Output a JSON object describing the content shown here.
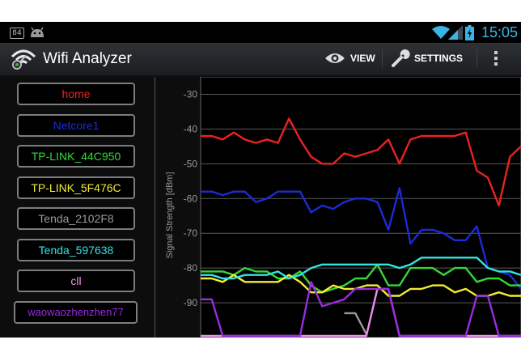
{
  "status_bar": {
    "notification_number": "84",
    "time": "15:05",
    "time_color": "#3ab4e6"
  },
  "action_bar": {
    "title": "Wifi Analyzer",
    "view_label": "VIEW",
    "settings_label": "SETTINGS",
    "icons": [
      "wifi-analyzer-app-icon",
      "eye-icon",
      "wrench-icon",
      "overflow-menu-icon"
    ]
  },
  "networks": [
    {
      "ssid": "home",
      "color": "#e8231f"
    },
    {
      "ssid": "Netcore1",
      "color": "#1b2bd6"
    },
    {
      "ssid": "TP-LINK_44C950",
      "color": "#35d935"
    },
    {
      "ssid": "TP-LINK_5F476C",
      "color": "#f2ec34"
    },
    {
      "ssid": "Tenda_2102F8",
      "color": "#9a9a9a"
    },
    {
      "ssid": "Tenda_597638",
      "color": "#34e2e2"
    },
    {
      "ssid": "cll",
      "color": "#f08ff0"
    },
    {
      "ssid": "waowaozhenzhen77",
      "color": "#9a2be0"
    }
  ],
  "chart_data": {
    "type": "line",
    "ylabel": "Signal Strength [dBm]",
    "xlabel": "",
    "y_ticks": [
      -30,
      -40,
      -50,
      -60,
      -70,
      -80,
      -90
    ],
    "ylim": [
      -100,
      -25
    ],
    "grid": true,
    "series": [
      {
        "name": "home",
        "color": "#e8231f",
        "values": [
          -42,
          -42,
          -43,
          -41,
          -43,
          -44,
          -43,
          -44,
          -37,
          -43,
          -48,
          -50,
          -50,
          -47,
          -48,
          -47,
          -46,
          -43,
          -50,
          -43,
          -42,
          -42,
          -42,
          -42,
          -41,
          -52,
          -54,
          -62,
          -48,
          -45
        ]
      },
      {
        "name": "Netcore1",
        "color": "#1b2bd6",
        "values": [
          -58,
          -58,
          -59,
          -58,
          -58,
          -61,
          -60,
          -58,
          -58,
          -58,
          -64,
          -62,
          -63,
          -61,
          -60,
          -60,
          -61,
          -69,
          -57,
          -73,
          -69,
          -69,
          -70,
          -72,
          -72,
          -68,
          -80,
          -81,
          -82,
          -86
        ]
      },
      {
        "name": "TP-LINK_44C950",
        "color": "#35d935",
        "values": [
          -81,
          -81,
          -81,
          -82,
          -80,
          -81,
          -81,
          -83,
          -83,
          -81,
          -85,
          -87,
          -86,
          -85,
          -83,
          -83,
          -79,
          -85,
          -85,
          -80,
          -80,
          -80,
          -82,
          -80,
          -80,
          -84,
          -83,
          -83,
          -85,
          -85
        ]
      },
      {
        "name": "TP-LINK_5F476C",
        "color": "#f2ec34",
        "values": [
          -83,
          -83,
          -84,
          -82,
          -84,
          -84,
          -84,
          -84,
          -82,
          -84,
          -87,
          -87,
          -85,
          -86,
          -86,
          -85,
          -85,
          -88,
          -88,
          -86,
          -86,
          -85,
          -85,
          -87,
          -86,
          -88,
          -88,
          -87,
          -88,
          -88
        ]
      },
      {
        "name": "Tenda_2102F8",
        "color": "#9a9a9a",
        "segment": [
          13,
          15
        ],
        "values": [
          null,
          null,
          null,
          null,
          null,
          null,
          null,
          null,
          null,
          null,
          null,
          null,
          null,
          -93,
          -93,
          -99,
          null,
          null,
          null,
          null,
          null,
          null,
          null,
          null,
          null,
          null,
          null,
          null,
          null,
          null
        ]
      },
      {
        "name": "Tenda_597638",
        "color": "#34e2e2",
        "values": [
          -82,
          -82,
          -83,
          -83,
          -82,
          -82,
          -82,
          -81,
          -83,
          -82,
          -80,
          -79,
          -79,
          -79,
          -79,
          -79,
          -79,
          -79,
          -80,
          -79,
          -77,
          -77,
          -77,
          -77,
          -77,
          -77,
          -80,
          -81,
          -81,
          -82
        ]
      },
      {
        "name": "cll",
        "color": "#f08ff0",
        "values": [
          -100,
          -100,
          -100,
          -100,
          -100,
          -100,
          -100,
          -100,
          -100,
          -100,
          -100,
          -100,
          -100,
          -100,
          -100,
          -100,
          -86,
          -86,
          -100,
          -100,
          -100,
          -100,
          -100,
          -100,
          -100,
          -100,
          -100,
          -100,
          -100,
          -100
        ]
      },
      {
        "name": "waowaozhenzhen77",
        "color": "#9a2be0",
        "values": [
          -89,
          -89,
          -100,
          -100,
          -100,
          -100,
          -100,
          -100,
          -100,
          -100,
          -84,
          -91,
          -90,
          -89,
          -86,
          -86,
          -86,
          -86,
          -100,
          -100,
          -100,
          -100,
          -100,
          -100,
          -100,
          -88,
          -88,
          -100,
          -100,
          -100
        ]
      }
    ]
  }
}
